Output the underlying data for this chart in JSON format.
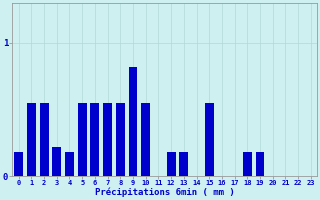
{
  "categories": [
    0,
    1,
    2,
    3,
    4,
    5,
    6,
    7,
    8,
    9,
    10,
    11,
    12,
    13,
    14,
    15,
    16,
    17,
    18,
    19,
    20,
    21,
    22,
    23
  ],
  "values": [
    0.18,
    0.55,
    0.55,
    0.22,
    0.18,
    0.55,
    0.55,
    0.55,
    0.55,
    0.82,
    0.55,
    0.0,
    0.18,
    0.18,
    0.0,
    0.55,
    0.0,
    0.0,
    0.18,
    0.18,
    0.0,
    0.0,
    0.0,
    0.0
  ],
  "bar_color": "#0000cc",
  "bg_color": "#cff0f0",
  "grid_color": "#b0d8d8",
  "axis_color": "#999999",
  "text_color": "#0000cc",
  "xlabel": "Précipitations 6min ( mm )",
  "ylim_max": 1.3,
  "xlim": [
    -0.5,
    23.5
  ],
  "bar_width": 0.7
}
